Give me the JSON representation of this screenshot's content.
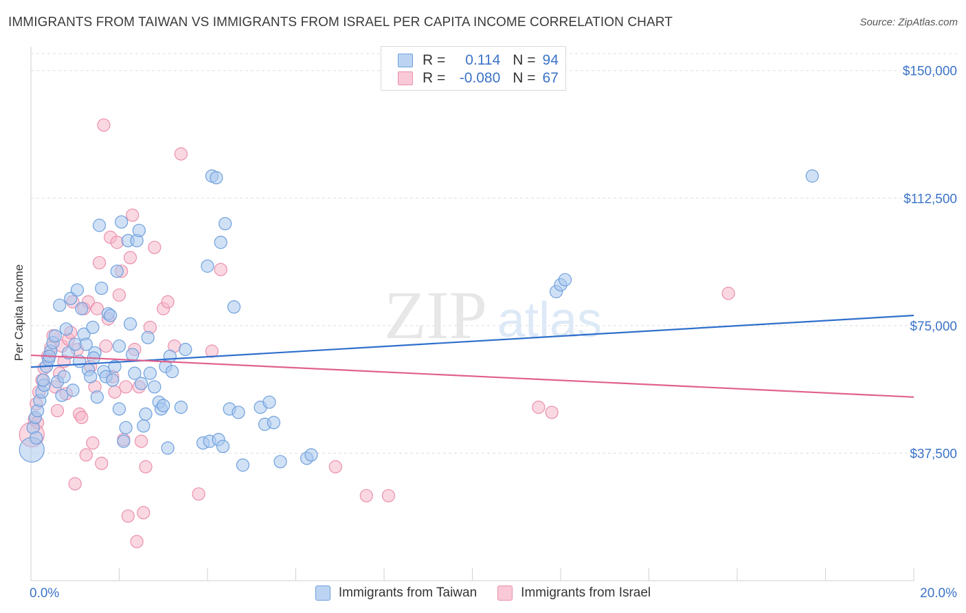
{
  "title": "IMMIGRANTS FROM TAIWAN VS IMMIGRANTS FROM ISRAEL PER CAPITA INCOME CORRELATION CHART",
  "source": "Source: ZipAtlas.com",
  "watermark": {
    "zip": "ZIP",
    "atlas": "atlas"
  },
  "legend": {
    "r_label": "R =",
    "n_label": "N =",
    "series": [
      {
        "name": "Immigrants from Taiwan",
        "r": "0.114",
        "n": "94"
      },
      {
        "name": "Immigrants from Israel",
        "r": "-0.080",
        "n": "67"
      }
    ]
  },
  "colors": {
    "blue_fill": "#a9c8ee",
    "blue_stroke": "#6e9fdc",
    "blue_line": "#2f6fcc",
    "pink_fill": "#f5b8cb",
    "pink_stroke": "#ea8fab",
    "pink_line": "#e0608e",
    "tick_text": "#3b73c8"
  },
  "chart_data": {
    "type": "scatter",
    "title": "IMMIGRANTS FROM TAIWAN VS IMMIGRANTS FROM ISRAEL PER CAPITA INCOME CORRELATION CHART",
    "xlabel": "",
    "ylabel": "Per Capita Income",
    "xlim": [
      0,
      20
    ],
    "ylim": [
      0,
      155000
    ],
    "x_tick_labels": [
      "0.0%",
      "20.0%"
    ],
    "y_ticks": [
      {
        "value": 37500,
        "label": "$37,500"
      },
      {
        "value": 75000,
        "label": "$75,000"
      },
      {
        "value": 112500,
        "label": "$112,500"
      },
      {
        "value": 150000,
        "label": "$150,000"
      }
    ],
    "series": [
      {
        "name": "Immigrants from Taiwan",
        "trend": {
          "x": [
            0,
            20
          ],
          "y": [
            62800,
            78000
          ]
        },
        "points": [
          [
            0.02,
            38500
          ],
          [
            0.05,
            45000
          ],
          [
            0.1,
            48000
          ],
          [
            0.15,
            50000
          ],
          [
            0.2,
            53000
          ],
          [
            0.25,
            55500
          ],
          [
            0.3,
            57500
          ],
          [
            0.35,
            63000
          ],
          [
            0.4,
            65000
          ],
          [
            0.45,
            67500
          ],
          [
            0.5,
            70000
          ],
          [
            0.55,
            72000
          ],
          [
            0.6,
            58500
          ],
          [
            0.65,
            81000
          ],
          [
            0.7,
            54500
          ],
          [
            0.75,
            60000
          ],
          [
            0.8,
            74000
          ],
          [
            0.85,
            67000
          ],
          [
            0.9,
            83000
          ],
          [
            0.95,
            56000
          ],
          [
            1.0,
            69500
          ],
          [
            1.05,
            85500
          ],
          [
            1.1,
            64500
          ],
          [
            1.15,
            80000
          ],
          [
            1.2,
            72500
          ],
          [
            1.25,
            69500
          ],
          [
            1.3,
            62000
          ],
          [
            1.35,
            60000
          ],
          [
            1.4,
            74500
          ],
          [
            1.45,
            67000
          ],
          [
            1.5,
            54000
          ],
          [
            1.55,
            104500
          ],
          [
            1.6,
            86000
          ],
          [
            1.65,
            61500
          ],
          [
            1.7,
            60000
          ],
          [
            1.75,
            78500
          ],
          [
            1.8,
            78000
          ],
          [
            1.85,
            59000
          ],
          [
            1.9,
            63000
          ],
          [
            1.95,
            91000
          ],
          [
            2.0,
            50500
          ],
          [
            2.05,
            105500
          ],
          [
            2.1,
            41000
          ],
          [
            2.15,
            45000
          ],
          [
            2.2,
            100000
          ],
          [
            2.25,
            75500
          ],
          [
            2.3,
            66500
          ],
          [
            2.35,
            61000
          ],
          [
            2.4,
            100000
          ],
          [
            2.45,
            103000
          ],
          [
            2.5,
            58000
          ],
          [
            2.55,
            45500
          ],
          [
            2.6,
            49000
          ],
          [
            2.65,
            71500
          ],
          [
            2.7,
            61000
          ],
          [
            2.8,
            57000
          ],
          [
            2.9,
            52500
          ],
          [
            2.95,
            50500
          ],
          [
            3.0,
            51500
          ],
          [
            3.05,
            63000
          ],
          [
            3.1,
            39000
          ],
          [
            3.15,
            66000
          ],
          [
            3.2,
            61500
          ],
          [
            3.4,
            51000
          ],
          [
            3.5,
            68000
          ],
          [
            3.9,
            40500
          ],
          [
            4.0,
            92500
          ],
          [
            4.05,
            41000
          ],
          [
            4.1,
            119000
          ],
          [
            4.2,
            118500
          ],
          [
            4.25,
            41500
          ],
          [
            4.3,
            99500
          ],
          [
            4.35,
            39500
          ],
          [
            4.4,
            105000
          ],
          [
            4.5,
            50500
          ],
          [
            4.6,
            80500
          ],
          [
            4.7,
            49500
          ],
          [
            4.8,
            34000
          ],
          [
            5.2,
            51000
          ],
          [
            5.3,
            46000
          ],
          [
            5.4,
            52500
          ],
          [
            5.5,
            46500
          ],
          [
            5.65,
            35000
          ],
          [
            6.25,
            36000
          ],
          [
            6.35,
            37000
          ],
          [
            11.9,
            85000
          ],
          [
            12.0,
            87000
          ],
          [
            12.1,
            88500
          ],
          [
            17.7,
            119000
          ],
          [
            0.12,
            42000
          ],
          [
            0.28,
            59000
          ],
          [
            0.42,
            66000
          ],
          [
            1.42,
            65500
          ],
          [
            2.0,
            69000
          ]
        ]
      },
      {
        "name": "Immigrants from Israel",
        "trend": {
          "x": [
            0,
            20
          ],
          "y": [
            66300,
            54000
          ]
        },
        "points": [
          [
            0.02,
            43000
          ],
          [
            0.08,
            47500
          ],
          [
            0.12,
            52000
          ],
          [
            0.18,
            55500
          ],
          [
            0.25,
            59000
          ],
          [
            0.3,
            62500
          ],
          [
            0.38,
            66000
          ],
          [
            0.45,
            68500
          ],
          [
            0.5,
            72000
          ],
          [
            0.55,
            57000
          ],
          [
            0.6,
            50000
          ],
          [
            0.65,
            61000
          ],
          [
            0.7,
            69000
          ],
          [
            0.75,
            64500
          ],
          [
            0.8,
            55000
          ],
          [
            0.85,
            71000
          ],
          [
            0.9,
            73000
          ],
          [
            0.95,
            82000
          ],
          [
            1.0,
            28500
          ],
          [
            1.05,
            68000
          ],
          [
            1.1,
            49000
          ],
          [
            1.15,
            48000
          ],
          [
            1.2,
            80000
          ],
          [
            1.25,
            37000
          ],
          [
            1.3,
            82000
          ],
          [
            1.35,
            63000
          ],
          [
            1.4,
            40500
          ],
          [
            1.45,
            57000
          ],
          [
            1.5,
            80000
          ],
          [
            1.55,
            93500
          ],
          [
            1.6,
            34500
          ],
          [
            1.65,
            134000
          ],
          [
            1.7,
            69000
          ],
          [
            1.75,
            77000
          ],
          [
            1.8,
            101000
          ],
          [
            1.85,
            60000
          ],
          [
            1.9,
            55500
          ],
          [
            1.95,
            99500
          ],
          [
            2.0,
            84000
          ],
          [
            2.05,
            91000
          ],
          [
            2.1,
            41500
          ],
          [
            2.15,
            57000
          ],
          [
            2.2,
            19000
          ],
          [
            2.25,
            95000
          ],
          [
            2.3,
            107500
          ],
          [
            2.35,
            68000
          ],
          [
            2.4,
            11500
          ],
          [
            2.45,
            57000
          ],
          [
            2.5,
            41000
          ],
          [
            2.55,
            20000
          ],
          [
            2.6,
            33500
          ],
          [
            2.7,
            74500
          ],
          [
            2.8,
            98000
          ],
          [
            3.0,
            80000
          ],
          [
            3.1,
            82000
          ],
          [
            3.25,
            69000
          ],
          [
            3.4,
            125500
          ],
          [
            3.8,
            25500
          ],
          [
            4.1,
            67500
          ],
          [
            4.3,
            91500
          ],
          [
            6.9,
            33500
          ],
          [
            7.6,
            25000
          ],
          [
            8.1,
            25000
          ],
          [
            11.5,
            51000
          ],
          [
            11.8,
            49500
          ],
          [
            15.8,
            84500
          ],
          [
            0.15,
            46500
          ]
        ]
      }
    ]
  }
}
